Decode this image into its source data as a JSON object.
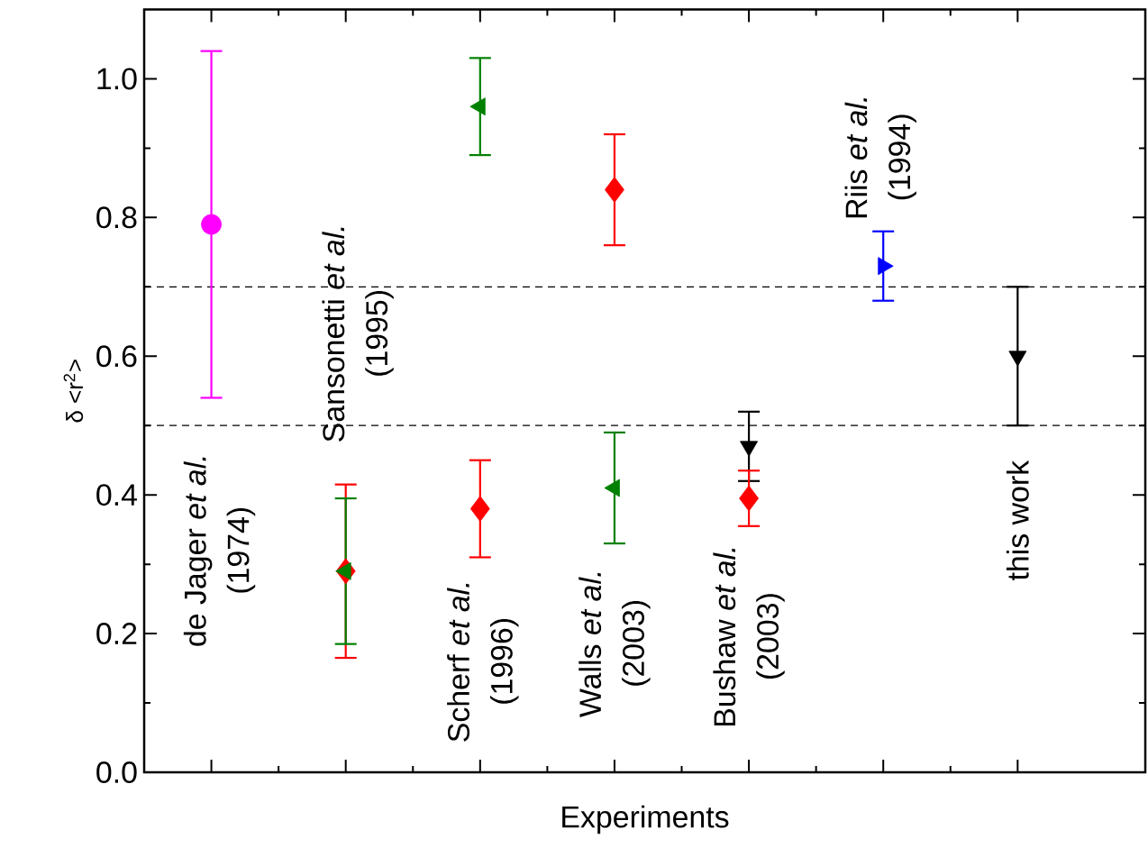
{
  "chart_data": {
    "type": "scatter",
    "xlabel": "Experiments",
    "ylabel": "δ <r$^{2}$>",
    "categories": [
      null,
      null,
      null,
      null,
      null,
      null,
      null
    ],
    "series": [
      {
        "color": "#ff00ff",
        "marker": "circle",
        "values": [
          0.79,
          null,
          null,
          null,
          null,
          null,
          null
        ],
        "errors": [
          0.25,
          null,
          null,
          null,
          null,
          null,
          null
        ]
      },
      {
        "color": "#000000",
        "marker": "triangle",
        "values": [
          null,
          null,
          null,
          null,
          0.47,
          null,
          0.6
        ],
        "errors": [
          null,
          null,
          null,
          null,
          0.05,
          null,
          0.1
        ]
      },
      {
        "color": "#ff0000",
        "marker": "diamond",
        "values": [
          null,
          0.29,
          0.38,
          0.84,
          0.395,
          null,
          null
        ],
        "errors": [
          null,
          0.125,
          0.07,
          0.08,
          0.04,
          null,
          null
        ]
      },
      {
        "color": "#008000",
        "marker": "triangle",
        "values": [
          null,
          0.29,
          0.96,
          0.41,
          null,
          null,
          null
        ],
        "errors": [
          null,
          0.105,
          0.07,
          0.08,
          null,
          null,
          null
        ]
      },
      {
        "color": "#0000ff",
        "marker": "triangle",
        "values": [
          null,
          null,
          null,
          null,
          null,
          0.73,
          null
        ],
        "errors": [
          null,
          null,
          null,
          null,
          null,
          0.05,
          null
        ]
      }
    ],
    "ylim": [
      0,
      1.1
    ],
    "yticks": [
      {
        "value": 0,
        "label": "0.0"
      },
      {
        "value": 0.2,
        "label": "0.2"
      },
      {
        "value": 0.4,
        "label": "0.4"
      },
      {
        "value": 0.6,
        "label": "0.6"
      },
      {
        "value": 0.8,
        "label": "0.8"
      },
      {
        "value": 1.0,
        "label": "1.0"
      }
    ],
    "ref_lines": [
      {
        "axis": "y",
        "value": 0.7,
        "color": "#000000",
        "line_style": "dashed"
      },
      {
        "axis": "y",
        "value": 0.5,
        "color": "#000000",
        "line_style": "dashed"
      }
    ],
    "annotations": [
      "de Jager *et al.*",
      "(1974)",
      "Sansonetti *et al.*",
      "(1995)",
      "Scherf *et al.*",
      "(1996)",
      "Walls *et al.*",
      "(2003)",
      "Bushaw *et al.*",
      "(2003)",
      "Riis *et al.*",
      "(1994)",
      "this work"
    ]
  }
}
